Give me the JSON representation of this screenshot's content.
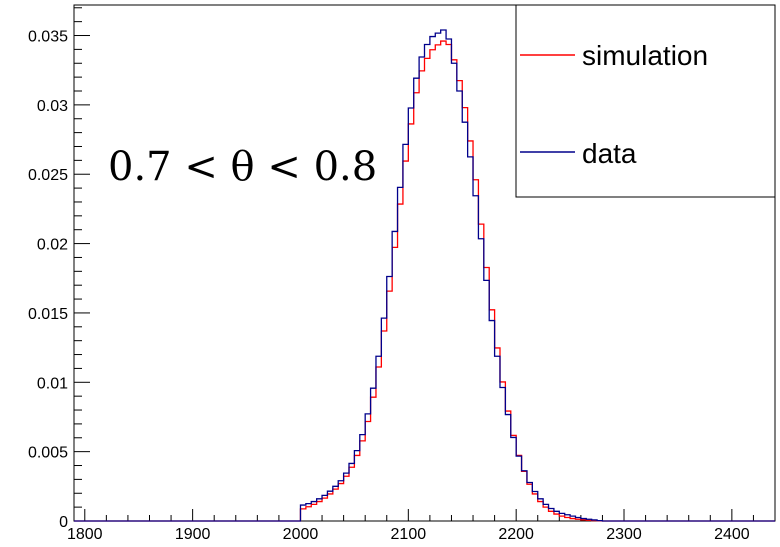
{
  "chart_data": {
    "type": "line",
    "title": "",
    "xlabel": "",
    "ylabel": "",
    "xlim": [
      1790,
      2440
    ],
    "ylim": [
      0,
      0.0372
    ],
    "x_ticks": [
      {
        "value": 1800,
        "label": "1800"
      },
      {
        "value": 1900,
        "label": "1900"
      },
      {
        "value": 2000,
        "label": "2000"
      },
      {
        "value": 2100,
        "label": "2100"
      },
      {
        "value": 2200,
        "label": "2200"
      },
      {
        "value": 2300,
        "label": "2300"
      },
      {
        "value": 2400,
        "label": "2400"
      }
    ],
    "y_ticks": [
      {
        "value": 0,
        "label": "0"
      },
      {
        "value": 0.005,
        "label": "0.005"
      },
      {
        "value": 0.01,
        "label": "0.01"
      },
      {
        "value": 0.015,
        "label": "0.015"
      },
      {
        "value": 0.02,
        "label": "0.02"
      },
      {
        "value": 0.025,
        "label": "0.025"
      },
      {
        "value": 0.03,
        "label": "0.03"
      },
      {
        "value": 0.035,
        "label": "0.035"
      }
    ],
    "annotation": "0.7 < θ < 0.8",
    "legend_position": "top-right",
    "series": [
      {
        "name": "simulation",
        "color": "#ff0000",
        "points": [
          [
            2000,
            0.0008
          ],
          [
            2010,
            0.0011
          ],
          [
            2020,
            0.0015
          ],
          [
            2030,
            0.0021
          ],
          [
            2040,
            0.0029
          ],
          [
            2050,
            0.0042
          ],
          [
            2060,
            0.0063
          ],
          [
            2070,
            0.0098
          ],
          [
            2080,
            0.015
          ],
          [
            2090,
            0.0213
          ],
          [
            2100,
            0.0275
          ],
          [
            2110,
            0.032
          ],
          [
            2120,
            0.0338
          ],
          [
            2130,
            0.0345
          ],
          [
            2135,
            0.0347
          ],
          [
            2140,
            0.034
          ],
          [
            2150,
            0.031
          ],
          [
            2160,
            0.0262
          ],
          [
            2170,
            0.0198
          ],
          [
            2180,
            0.0137
          ],
          [
            2190,
            0.0088
          ],
          [
            2200,
            0.0053
          ],
          [
            2210,
            0.003
          ],
          [
            2220,
            0.0016
          ],
          [
            2230,
            0.0008
          ],
          [
            2240,
            0.0004
          ],
          [
            2250,
            0.0002
          ],
          [
            2260,
            0.0001
          ],
          [
            2270,
            4e-05
          ],
          [
            2280,
            0.0
          ]
        ]
      },
      {
        "name": "data",
        "color": "#00008b",
        "points": [
          [
            2000,
            0.0011
          ],
          [
            2010,
            0.0013
          ],
          [
            2020,
            0.0017
          ],
          [
            2030,
            0.0023
          ],
          [
            2040,
            0.0031
          ],
          [
            2050,
            0.0045
          ],
          [
            2060,
            0.0068
          ],
          [
            2070,
            0.0105
          ],
          [
            2080,
            0.016
          ],
          [
            2090,
            0.0225
          ],
          [
            2100,
            0.0287
          ],
          [
            2110,
            0.033
          ],
          [
            2120,
            0.0348
          ],
          [
            2130,
            0.0353
          ],
          [
            2135,
            0.0355
          ],
          [
            2140,
            0.034
          ],
          [
            2150,
            0.03
          ],
          [
            2160,
            0.025
          ],
          [
            2170,
            0.0188
          ],
          [
            2180,
            0.013
          ],
          [
            2190,
            0.0085
          ],
          [
            2200,
            0.0052
          ],
          [
            2210,
            0.0031
          ],
          [
            2220,
            0.0018
          ],
          [
            2230,
            0.001
          ],
          [
            2240,
            0.0006
          ],
          [
            2250,
            0.0004
          ],
          [
            2260,
            0.0002
          ],
          [
            2270,
            0.0001
          ],
          [
            2280,
            0.0
          ]
        ]
      }
    ]
  }
}
